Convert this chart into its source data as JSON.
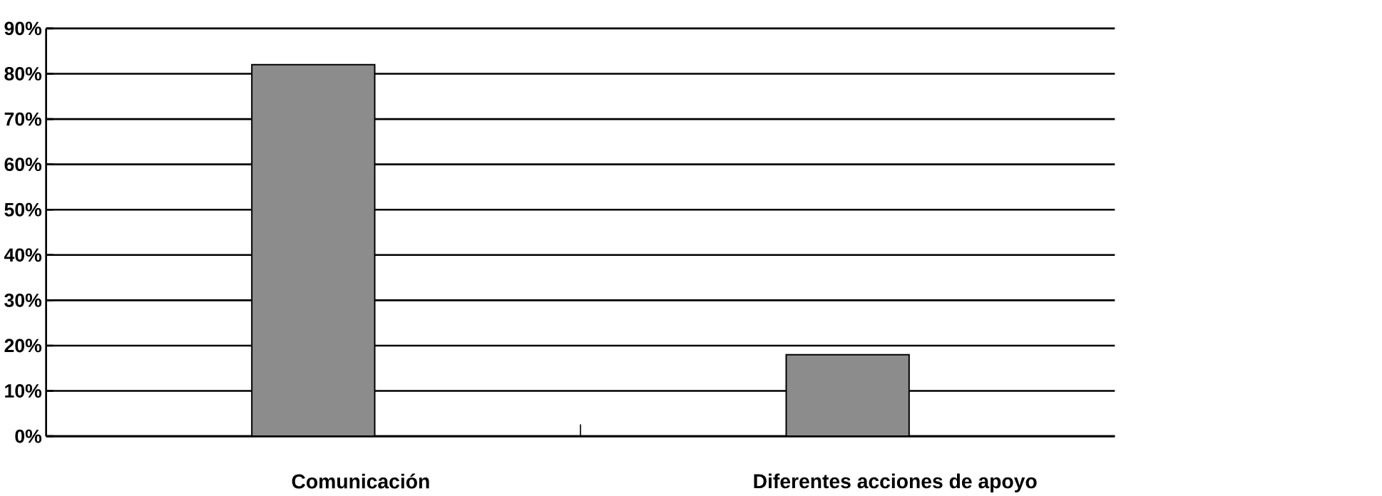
{
  "chart_data": {
    "type": "bar",
    "categories": [
      "Comunicación",
      "Diferentes acciones de apoyo"
    ],
    "values": [
      82,
      18
    ],
    "color": "#8c8c8c",
    "ylim": [
      0,
      90
    ],
    "yticks": [
      {
        "value": 0,
        "label": "0%"
      },
      {
        "value": 10,
        "label": "10%"
      },
      {
        "value": 20,
        "label": "20%"
      },
      {
        "value": 30,
        "label": "30%"
      },
      {
        "value": 40,
        "label": "40%"
      },
      {
        "value": 50,
        "label": "50%"
      },
      {
        "value": 60,
        "label": "60%"
      },
      {
        "value": 70,
        "label": "70%"
      },
      {
        "value": 80,
        "label": "80%"
      },
      {
        "value": 90,
        "label": "90%"
      }
    ],
    "grid": "y"
  }
}
